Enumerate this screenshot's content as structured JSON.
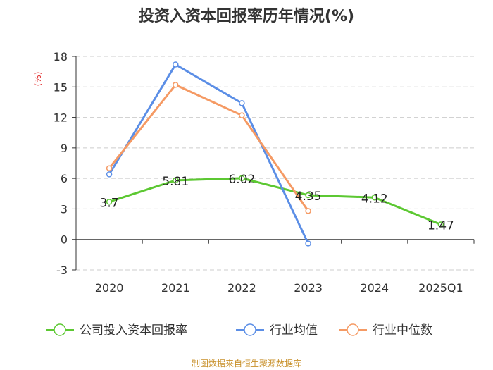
{
  "chart_data": {
    "type": "line",
    "title": "投资入资本回报率历年情况(%)",
    "ylabel": "(%)",
    "xlabel": "",
    "categories": [
      "2020",
      "2021",
      "2022",
      "2023",
      "2024",
      "2025Q1"
    ],
    "ylim": [
      -3,
      18
    ],
    "yticks": [
      -3,
      0,
      3,
      6,
      9,
      12,
      15,
      18
    ],
    "grid": true,
    "legend_position": "bottom",
    "series": [
      {
        "name": "公司投入资本回报率",
        "color": "#5cc832",
        "values": [
          3.7,
          5.81,
          6.02,
          4.35,
          4.12,
          1.47
        ],
        "labels": [
          "3.7",
          "5.81",
          "6.02",
          "4.35",
          "4.12",
          "1.47"
        ],
        "show_labels": true
      },
      {
        "name": "行业均值",
        "color": "#5b8ee6",
        "values": [
          6.4,
          17.2,
          13.4,
          -0.4,
          null,
          null
        ],
        "show_labels": false
      },
      {
        "name": "行业中位数",
        "color": "#f59a64",
        "values": [
          7.0,
          15.2,
          12.2,
          2.8,
          null,
          null
        ],
        "show_labels": false
      }
    ],
    "source": "制图数据来自恒生聚源数据库"
  }
}
